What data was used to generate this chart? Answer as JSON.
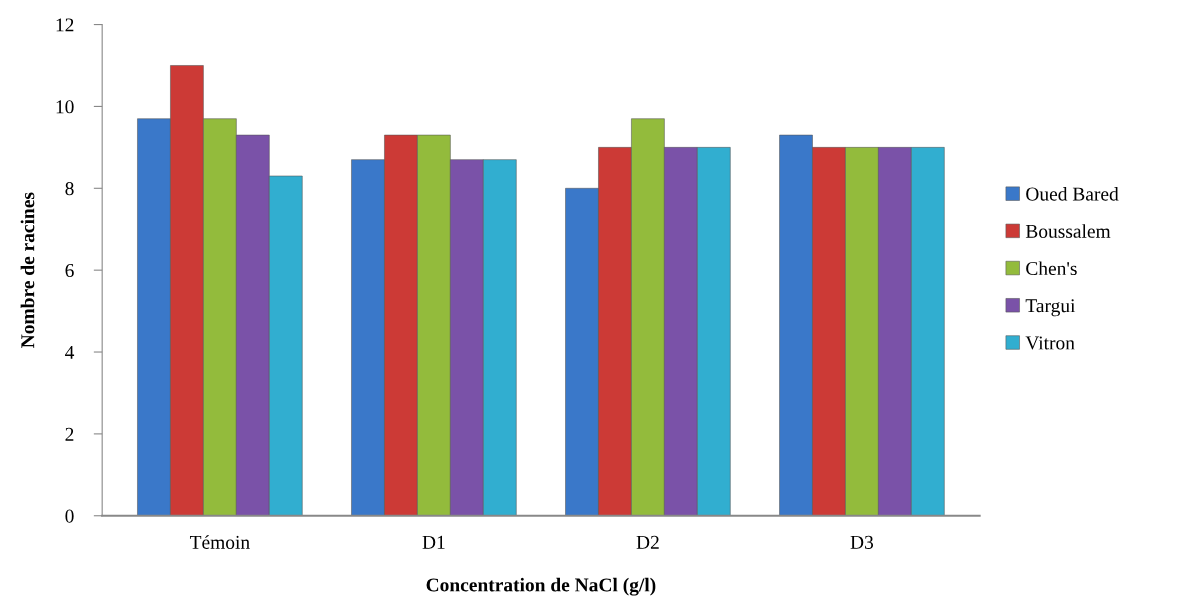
{
  "chart_data": {
    "type": "bar",
    "xlabel": "Concentration de NaCl (g/l)",
    "ylabel": "Nombre de racines",
    "categories": [
      "Témoin",
      "D1",
      "D2",
      "D3"
    ],
    "series": [
      {
        "name": "Oued Bared",
        "color": "#3a78c9",
        "values": [
          9.7,
          8.7,
          8,
          9.3
        ]
      },
      {
        "name": "Boussalem",
        "color": "#cc3a36",
        "values": [
          11,
          9.3,
          9,
          9
        ]
      },
      {
        "name": "Chen's",
        "color": "#93bb3c",
        "values": [
          9.7,
          9.3,
          9.7,
          9
        ]
      },
      {
        "name": "Targui",
        "color": "#7a52a8",
        "values": [
          9.3,
          8.7,
          9,
          9
        ]
      },
      {
        "name": "Vitron",
        "color": "#31aed0",
        "values": [
          8.3,
          8.7,
          9,
          9
        ]
      }
    ],
    "ylim": [
      0,
      12
    ],
    "yticks": [
      0,
      2,
      4,
      6,
      8,
      10,
      12
    ],
    "grid": false,
    "legend": "right"
  }
}
